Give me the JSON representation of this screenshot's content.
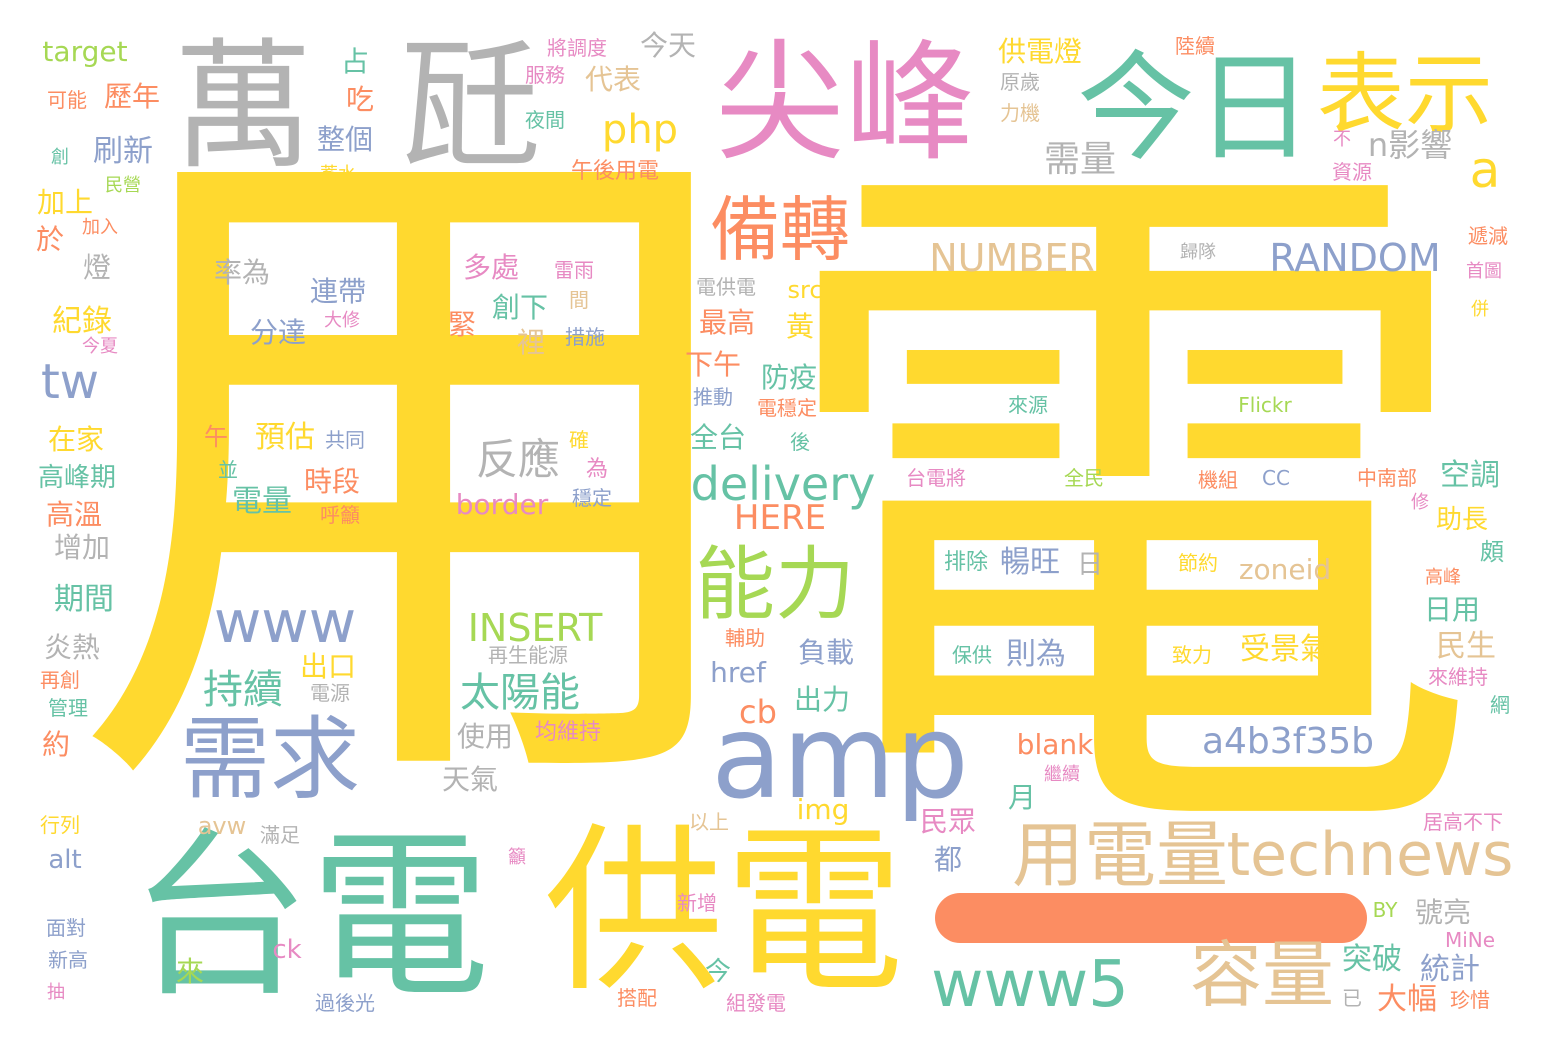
{
  "palette": {
    "yellow": "#ffd92f",
    "gold": "#ffd92f",
    "green": "#66c2a5",
    "pink": "#e78ac3",
    "gray": "#b3b3b3",
    "blue": "#8da0cb",
    "lime": "#a6d854",
    "tan": "#e5c494",
    "orange": "#fc8d62"
  },
  "words": [
    {
      "text": "用",
      "color": "yellow"
    },
    {
      "text": "電",
      "color": "yellow"
    },
    {
      "text": "萬",
      "color": "gray"
    },
    {
      "text": "瓩",
      "color": "gray"
    },
    {
      "text": "尖峰",
      "color": "pink"
    },
    {
      "text": "今日",
      "color": "green"
    },
    {
      "text": "表示",
      "color": "yellow"
    },
    {
      "text": "台電",
      "color": "green"
    },
    {
      "text": "供電",
      "color": "yellow"
    },
    {
      "text": "amp",
      "color": "blue"
    },
    {
      "text": "需求",
      "color": "blue"
    },
    {
      "text": "備轉",
      "color": "orange"
    },
    {
      "text": "能力",
      "color": "lime"
    },
    {
      "text": "用電量",
      "color": "tan"
    },
    {
      "text": "technews",
      "color": "tan"
    },
    {
      "text": "容量",
      "color": "tan"
    },
    {
      "text": "www5",
      "color": "green"
    },
    {
      "text": "www",
      "color": "blue"
    },
    {
      "text": "tw",
      "color": "blue"
    },
    {
      "text": "delivery",
      "color": "green"
    },
    {
      "text": "RANDOM",
      "color": "blue"
    },
    {
      "text": "NUMBER",
      "color": "tan"
    },
    {
      "text": "php",
      "color": "yellow"
    },
    {
      "text": "a",
      "color": "yellow"
    },
    {
      "text": "n影響",
      "color": "gray"
    },
    {
      "text": "需量",
      "color": "gray"
    },
    {
      "text": "a4b3f35b",
      "color": "blue"
    },
    {
      "text": "太陽能",
      "color": "green"
    },
    {
      "text": "INSERT",
      "color": "lime"
    },
    {
      "text": "持續",
      "color": "green"
    },
    {
      "text": "反應",
      "color": "gray"
    },
    {
      "text": "border",
      "color": "pink"
    },
    {
      "text": "HERE",
      "color": "orange"
    },
    {
      "text": "zoneid",
      "color": "tan"
    },
    {
      "text": "受景氣",
      "color": "yellow"
    },
    {
      "text": "則為",
      "color": "blue"
    },
    {
      "text": "暢旺",
      "color": "blue"
    },
    {
      "text": "日",
      "color": "gray"
    },
    {
      "text": "排除",
      "color": "green"
    },
    {
      "text": "節約",
      "color": "yellow"
    },
    {
      "text": "保供",
      "color": "green"
    },
    {
      "text": "致力",
      "color": "yellow"
    },
    {
      "text": "刷新",
      "color": "blue"
    },
    {
      "text": "歷年",
      "color": "orange"
    },
    {
      "text": "target",
      "color": "lime"
    },
    {
      "text": "可能",
      "color": "orange"
    },
    {
      "text": "加上",
      "color": "yellow"
    },
    {
      "text": "於",
      "color": "orange"
    },
    {
      "text": "燈",
      "color": "gray"
    },
    {
      "text": "紀錄",
      "color": "yellow"
    },
    {
      "text": "在家",
      "color": "yellow"
    },
    {
      "text": "高峰期",
      "color": "green"
    },
    {
      "text": "高溫",
      "color": "orange"
    },
    {
      "text": "增加",
      "color": "gray"
    },
    {
      "text": "期間",
      "color": "green"
    },
    {
      "text": "炎熱",
      "color": "gray"
    },
    {
      "text": "再創",
      "color": "orange"
    },
    {
      "text": "管理",
      "color": "green"
    },
    {
      "text": "約",
      "color": "orange"
    },
    {
      "text": "行列",
      "color": "yellow"
    },
    {
      "text": "alt",
      "color": "blue"
    },
    {
      "text": "面對",
      "color": "blue"
    },
    {
      "text": "新高",
      "color": "blue"
    },
    {
      "text": "抽",
      "color": "pink"
    },
    {
      "text": "來",
      "color": "lime"
    },
    {
      "text": "ck",
      "color": "pink"
    },
    {
      "text": "過後光",
      "color": "blue"
    },
    {
      "text": "整個",
      "color": "blue"
    },
    {
      "text": "占",
      "color": "green"
    },
    {
      "text": "吃",
      "color": "orange"
    },
    {
      "text": "將調度",
      "color": "pink"
    },
    {
      "text": "服務",
      "color": "pink"
    },
    {
      "text": "夜間",
      "color": "green"
    },
    {
      "text": "代表",
      "color": "tan"
    },
    {
      "text": "今天",
      "color": "gray"
    },
    {
      "text": "午後用電",
      "color": "orange"
    },
    {
      "text": "供電燈",
      "color": "yellow"
    },
    {
      "text": "陸續",
      "color": "orange"
    },
    {
      "text": "原歲",
      "color": "gray"
    },
    {
      "text": "力機",
      "color": "tan"
    },
    {
      "text": "不",
      "color": "pink"
    },
    {
      "text": "資源",
      "color": "pink"
    },
    {
      "text": "遞減",
      "color": "orange"
    },
    {
      "text": "首圖",
      "color": "pink"
    },
    {
      "text": "歸隊",
      "color": "gray"
    },
    {
      "text": "併",
      "color": "yellow"
    },
    {
      "text": "率為",
      "color": "gray"
    },
    {
      "text": "連帶",
      "color": "blue"
    },
    {
      "text": "分達",
      "color": "blue"
    },
    {
      "text": "多處",
      "color": "pink"
    },
    {
      "text": "雷雨",
      "color": "pink"
    },
    {
      "text": "間",
      "color": "tan"
    },
    {
      "text": "緊",
      "color": "orange"
    },
    {
      "text": "創下",
      "color": "green"
    },
    {
      "text": "裡",
      "color": "tan"
    },
    {
      "text": "措施",
      "color": "blue"
    },
    {
      "text": "午",
      "color": "orange"
    },
    {
      "text": "預估",
      "color": "yellow"
    },
    {
      "text": "共同",
      "color": "blue"
    },
    {
      "text": "時段",
      "color": "orange"
    },
    {
      "text": "並",
      "color": "green"
    },
    {
      "text": "電量",
      "color": "green"
    },
    {
      "text": "呼籲",
      "color": "orange"
    },
    {
      "text": "確",
      "color": "yellow"
    },
    {
      "text": "為",
      "color": "pink"
    },
    {
      "text": "穩定",
      "color": "blue"
    },
    {
      "text": "src",
      "color": "yellow"
    },
    {
      "text": "最高",
      "color": "orange"
    },
    {
      "text": "黃",
      "color": "yellow"
    },
    {
      "text": "下午",
      "color": "orange"
    },
    {
      "text": "防疫",
      "color": "green"
    },
    {
      "text": "全台",
      "color": "green"
    },
    {
      "text": "電供電",
      "color": "gray"
    },
    {
      "text": "推動",
      "color": "blue"
    },
    {
      "text": "電穩定",
      "color": "orange"
    },
    {
      "text": "後",
      "color": "green"
    },
    {
      "text": "來源",
      "color": "green"
    },
    {
      "text": "Flickr",
      "color": "lime"
    },
    {
      "text": "台電將",
      "color": "pink"
    },
    {
      "text": "全民",
      "color": "lime"
    },
    {
      "text": "機組",
      "color": "orange"
    },
    {
      "text": "CC",
      "color": "blue"
    },
    {
      "text": "中南部",
      "color": "orange"
    },
    {
      "text": "空調",
      "color": "green"
    },
    {
      "text": "修",
      "color": "pink"
    },
    {
      "text": "助長",
      "color": "yellow"
    },
    {
      "text": "頗",
      "color": "green"
    },
    {
      "text": "高峰",
      "color": "orange"
    },
    {
      "text": "日用",
      "color": "green"
    },
    {
      "text": "民生",
      "color": "tan"
    },
    {
      "text": "來維持",
      "color": "pink"
    },
    {
      "text": "網",
      "color": "green"
    },
    {
      "text": "輔助",
      "color": "orange"
    },
    {
      "text": "再生能源",
      "color": "gray"
    },
    {
      "text": "負載",
      "color": "blue"
    },
    {
      "text": "出口",
      "color": "yellow"
    },
    {
      "text": "電源",
      "color": "gray"
    },
    {
      "text": "href",
      "color": "blue"
    },
    {
      "text": "出力",
      "color": "green"
    },
    {
      "text": "cb",
      "color": "orange"
    },
    {
      "text": "使用",
      "color": "gray"
    },
    {
      "text": "均維持",
      "color": "pink"
    },
    {
      "text": "天氣",
      "color": "gray"
    },
    {
      "text": "blank",
      "color": "orange"
    },
    {
      "text": "繼續",
      "color": "pink"
    },
    {
      "text": "月",
      "color": "green"
    },
    {
      "text": "img",
      "color": "yellow"
    },
    {
      "text": "民眾",
      "color": "pink"
    },
    {
      "text": "以上",
      "color": "tan"
    },
    {
      "text": "都",
      "color": "blue"
    },
    {
      "text": "avw",
      "color": "tan"
    },
    {
      "text": "滿足",
      "color": "gray"
    },
    {
      "text": "籲",
      "color": "pink"
    },
    {
      "text": "新增",
      "color": "pink"
    },
    {
      "text": "居高不下",
      "color": "pink"
    },
    {
      "text": "號亮",
      "color": "gray"
    },
    {
      "text": "BY",
      "color": "lime"
    },
    {
      "text": "MiNe",
      "color": "pink"
    },
    {
      "text": "突破",
      "color": "green"
    },
    {
      "text": "統計",
      "color": "blue"
    },
    {
      "text": "大幅",
      "color": "orange"
    },
    {
      "text": "已",
      "color": "gray"
    },
    {
      "text": "珍惜",
      "color": "orange"
    },
    {
      "text": "今",
      "color": "green"
    },
    {
      "text": "組發電",
      "color": "pink"
    },
    {
      "text": "搭配",
      "color": "orange"
    },
    {
      "text": "創",
      "color": "green"
    },
    {
      "text": "民營",
      "color": "lime"
    },
    {
      "text": "加入",
      "color": "orange"
    },
    {
      "text": "蓄水",
      "color": "yellow"
    },
    {
      "text": "大修",
      "color": "pink"
    },
    {
      "text": "今夏",
      "color": "pink"
    }
  ]
}
